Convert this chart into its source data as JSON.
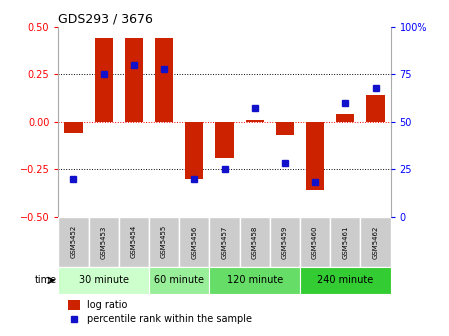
{
  "title": "GDS293 / 3676",
  "samples": [
    "GSM5452",
    "GSM5453",
    "GSM5454",
    "GSM5455",
    "GSM5456",
    "GSM5457",
    "GSM5458",
    "GSM5459",
    "GSM5460",
    "GSM5461",
    "GSM5462"
  ],
  "log_ratio": [
    -0.06,
    0.44,
    0.44,
    0.44,
    -0.3,
    -0.19,
    0.01,
    -0.07,
    -0.36,
    0.04,
    0.14
  ],
  "percentile": [
    20,
    75,
    80,
    78,
    20,
    25,
    57,
    28,
    18,
    60,
    68
  ],
  "group_defs": [
    {
      "label": "30 minute",
      "start": 0,
      "end": 3,
      "color": "#ccffcc"
    },
    {
      "label": "60 minute",
      "start": 3,
      "end": 5,
      "color": "#99ee99"
    },
    {
      "label": "120 minute",
      "start": 5,
      "end": 8,
      "color": "#66dd66"
    },
    {
      "label": "240 minute",
      "start": 8,
      "end": 11,
      "color": "#33cc33"
    }
  ],
  "bar_color": "#cc2200",
  "dot_color": "#1111cc",
  "bg_color": "#ffffff",
  "ylim_left": [
    -0.5,
    0.5
  ],
  "ylim_right": [
    0,
    100
  ],
  "yticks_left": [
    -0.5,
    -0.25,
    0,
    0.25,
    0.5
  ],
  "yticks_right": [
    0,
    25,
    50,
    75,
    100
  ],
  "hlines": [
    0.25,
    0,
    -0.25
  ],
  "hline_styles": [
    "dotted",
    "dotted_red",
    "dotted"
  ],
  "time_label": "time",
  "legend_log_ratio": "log ratio",
  "legend_percentile": "percentile rank within the sample",
  "sample_box_color": "#cccccc",
  "bar_width": 0.6
}
